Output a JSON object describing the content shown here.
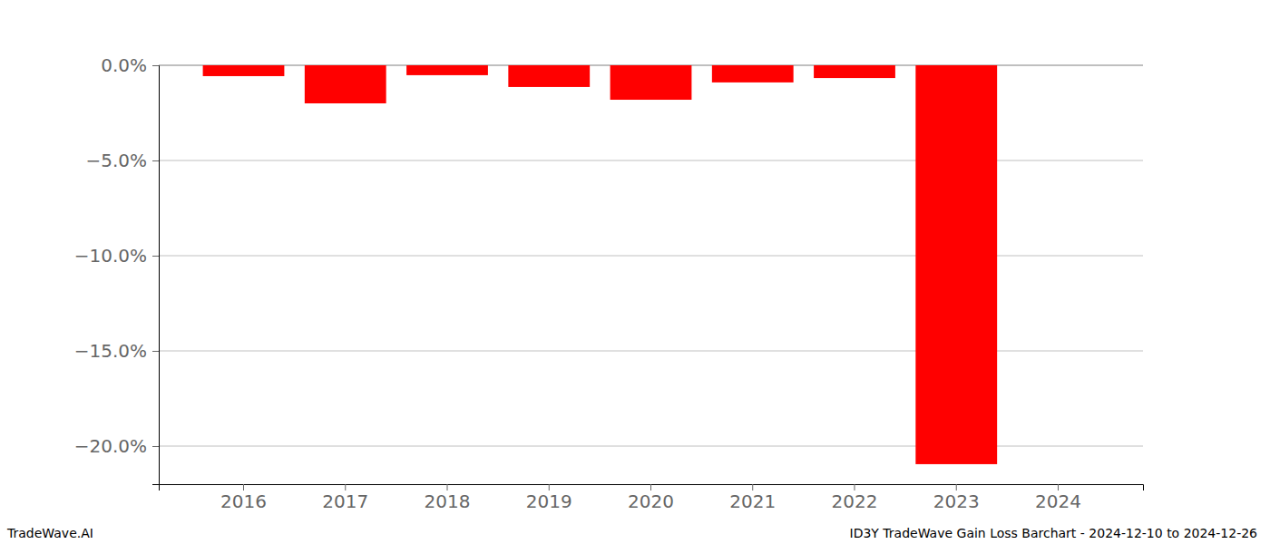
{
  "chart_data": {
    "type": "bar",
    "title": "ID3Y TradeWave Gain Loss Barchart - 2024-12-10 to 2024-12-26",
    "source": "TradeWave.AI",
    "categories": [
      "2016",
      "2017",
      "2018",
      "2019",
      "2020",
      "2021",
      "2022",
      "2023",
      "2024"
    ],
    "values": [
      -0.57,
      -2.0,
      -0.52,
      -1.14,
      -1.81,
      -0.9,
      -0.67,
      -20.95,
      0
    ],
    "color": "#ff0000",
    "ylim": [
      -22,
      0
    ],
    "yticks": [
      {
        "value": 0,
        "label": "0.0%"
      },
      {
        "value": -5,
        "label": "−5.0%"
      },
      {
        "value": -10,
        "label": "−10.0%"
      },
      {
        "value": -15,
        "label": "−15.0%"
      },
      {
        "value": -20,
        "label": "−20.0%"
      }
    ],
    "grid": true
  }
}
